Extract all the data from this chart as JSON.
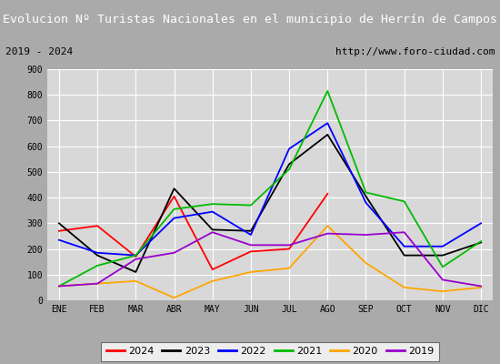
{
  "title": "Evolucion Nº Turistas Nacionales en el municipio de Herrín de Campos",
  "subtitle_left": "2019 - 2024",
  "subtitle_right": "http://www.foro-ciudad.com",
  "x_labels": [
    "ENE",
    "FEB",
    "MAR",
    "ABR",
    "MAY",
    "JUN",
    "JUL",
    "AGO",
    "SEP",
    "OCT",
    "NOV",
    "DIC"
  ],
  "ylim": [
    0,
    900
  ],
  "yticks": [
    0,
    100,
    200,
    300,
    400,
    500,
    600,
    700,
    800,
    900
  ],
  "series": {
    "2024": {
      "color": "#ff0000",
      "data": [
        270,
        290,
        170,
        405,
        120,
        190,
        200,
        415,
        null,
        null,
        null,
        null
      ]
    },
    "2023": {
      "color": "#000000",
      "data": [
        300,
        175,
        110,
        435,
        275,
        270,
        530,
        645,
        405,
        175,
        175,
        225
      ]
    },
    "2022": {
      "color": "#0000ff",
      "data": [
        235,
        185,
        175,
        320,
        345,
        255,
        590,
        690,
        380,
        210,
        210,
        300
      ]
    },
    "2021": {
      "color": "#00bb00",
      "data": [
        55,
        135,
        175,
        355,
        375,
        370,
        510,
        815,
        420,
        385,
        130,
        230
      ]
    },
    "2020": {
      "color": "#ffa500",
      "data": [
        55,
        65,
        75,
        10,
        75,
        110,
        125,
        290,
        145,
        50,
        35,
        50
      ]
    },
    "2019": {
      "color": "#9900cc",
      "data": [
        55,
        65,
        160,
        185,
        265,
        215,
        215,
        260,
        255,
        265,
        80,
        55
      ]
    }
  },
  "title_bg_color": "#4477cc",
  "title_font_color": "#ffffff",
  "plot_bg_color": "#d8d8d8",
  "subtitle_box_color": "#ffffff",
  "grid_color": "#ffffff",
  "fig_bg_color": "#aaaaaa",
  "legend_order": [
    "2024",
    "2023",
    "2022",
    "2021",
    "2020",
    "2019"
  ]
}
